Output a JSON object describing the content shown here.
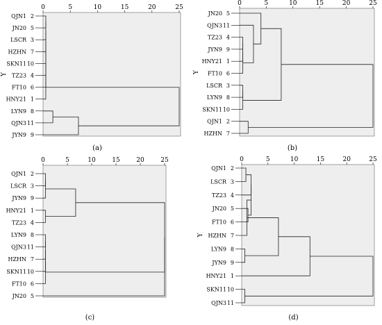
{
  "chart_data": [
    {
      "type": "dendrogram",
      "caption": "(a)",
      "ylabel": "Y",
      "xticks": [
        0,
        5,
        10,
        15,
        20,
        25
      ],
      "xlim": [
        0,
        25
      ],
      "leaves": [
        {
          "name": "QJN1",
          "id": "2"
        },
        {
          "name": "JN20",
          "id": "5"
        },
        {
          "name": "LSCR",
          "id": "3"
        },
        {
          "name": "HZHN",
          "id": "7"
        },
        {
          "name": "SKN11",
          "id": "10"
        },
        {
          "name": "TZ23",
          "id": "4"
        },
        {
          "name": "FT10",
          "id": "6"
        },
        {
          "name": "HNY21",
          "id": "1"
        },
        {
          "name": "LYN9",
          "id": "8"
        },
        {
          "name": "QJN3",
          "id": "11"
        },
        {
          "name": "JYN9",
          "id": "9"
        }
      ],
      "merges": [
        {
          "a": 0,
          "b": 1,
          "h": 0.5
        },
        {
          "a": 11,
          "b": 2,
          "h": 0.5
        },
        {
          "a": 12,
          "b": 3,
          "h": 0.5
        },
        {
          "a": 13,
          "b": 4,
          "h": 0.5
        },
        {
          "a": 14,
          "b": 5,
          "h": 0.5
        },
        {
          "a": 15,
          "b": 6,
          "h": 0.5
        },
        {
          "a": 16,
          "b": 7,
          "h": 0.5
        },
        {
          "a": 8,
          "b": 9,
          "h": 1.8
        },
        {
          "a": 18,
          "b": 10,
          "h": 6.5
        },
        {
          "a": 17,
          "b": 19,
          "h": 25
        }
      ]
    },
    {
      "type": "dendrogram",
      "caption": "(b)",
      "ylabel": "Y",
      "xticks": [
        0,
        5,
        10,
        15,
        20,
        25
      ],
      "xlim": [
        0,
        25
      ],
      "leaves": [
        {
          "name": "JN20",
          "id": "5"
        },
        {
          "name": "QJN3",
          "id": "11"
        },
        {
          "name": "TZ23",
          "id": "4"
        },
        {
          "name": "JYN9",
          "id": "9"
        },
        {
          "name": "HNY21",
          "id": "1"
        },
        {
          "name": "FT10",
          "id": "6"
        },
        {
          "name": "LSCR",
          "id": "3"
        },
        {
          "name": "LYN9",
          "id": "8"
        },
        {
          "name": "SKN11",
          "id": "10"
        },
        {
          "name": "QJN1",
          "id": "2"
        },
        {
          "name": "HZHN",
          "id": "7"
        }
      ],
      "merges": [
        {
          "a": 2,
          "b": 3,
          "h": 0.6
        },
        {
          "a": 11,
          "b": 4,
          "h": 0.6
        },
        {
          "a": 12,
          "b": 5,
          "h": 0.6
        },
        {
          "a": 1,
          "b": 13,
          "h": 2.6
        },
        {
          "a": 0,
          "b": 14,
          "h": 4
        },
        {
          "a": 6,
          "b": 7,
          "h": 0.6
        },
        {
          "a": 16,
          "b": 8,
          "h": 0.6
        },
        {
          "a": 15,
          "b": 17,
          "h": 7.8
        },
        {
          "a": 9,
          "b": 10,
          "h": 1.6
        },
        {
          "a": 18,
          "b": 19,
          "h": 25
        }
      ]
    },
    {
      "type": "dendrogram",
      "caption": "(c)",
      "ylabel": "",
      "xticks": [
        0,
        5,
        10,
        15,
        20,
        25
      ],
      "xlim": [
        0,
        25
      ],
      "leaves": [
        {
          "name": "QJN1",
          "id": "2"
        },
        {
          "name": "LSCR",
          "id": "3"
        },
        {
          "name": "JYN9",
          "id": "9"
        },
        {
          "name": "HNY21",
          "id": "1"
        },
        {
          "name": "TZ23",
          "id": "4"
        },
        {
          "name": "LYN9",
          "id": "8"
        },
        {
          "name": "QJN3",
          "id": "11"
        },
        {
          "name": "HZHN",
          "id": "7"
        },
        {
          "name": "SKN11",
          "id": "10"
        },
        {
          "name": "FT10",
          "id": "6"
        },
        {
          "name": "JN20",
          "id": "5"
        }
      ],
      "merges": [
        {
          "a": 0,
          "b": 1,
          "h": 0.5
        },
        {
          "a": 11,
          "b": 2,
          "h": 0.5
        },
        {
          "a": 3,
          "b": 4,
          "h": 0.5
        },
        {
          "a": 12,
          "b": 13,
          "h": 6.7
        },
        {
          "a": 5,
          "b": 6,
          "h": 0.5
        },
        {
          "a": 15,
          "b": 7,
          "h": 0.5
        },
        {
          "a": 16,
          "b": 8,
          "h": 0.5
        },
        {
          "a": 17,
          "b": 9,
          "h": 0.5
        },
        {
          "a": 14,
          "b": 18,
          "h": 25
        },
        {
          "a": 19,
          "b": 10,
          "h": 25
        }
      ]
    },
    {
      "type": "dendrogram",
      "caption": "(d)",
      "ylabel": "Y",
      "xticks": [
        0,
        5,
        10,
        15,
        20,
        25
      ],
      "xlim": [
        0,
        25
      ],
      "leaves": [
        {
          "name": "QJN1",
          "id": "2"
        },
        {
          "name": "LSCR",
          "id": "3"
        },
        {
          "name": "TZ23",
          "id": "4"
        },
        {
          "name": "JN20",
          "id": "5"
        },
        {
          "name": "FT10",
          "id": "6"
        },
        {
          "name": "HZHN",
          "id": "7"
        },
        {
          "name": "LYN9",
          "id": "8"
        },
        {
          "name": "JYN9",
          "id": "9"
        },
        {
          "name": "HNY21",
          "id": "1"
        },
        {
          "name": "SKN11",
          "id": "10"
        },
        {
          "name": "QJN3",
          "id": "11"
        }
      ],
      "merges": [
        {
          "a": 0,
          "b": 1,
          "h": 0.8
        },
        {
          "a": 11,
          "b": 2,
          "h": 1.8
        },
        {
          "a": 3,
          "b": 4,
          "h": 1.2
        },
        {
          "a": 12,
          "b": 13,
          "h": 1.8
        },
        {
          "a": 14,
          "b": 5,
          "h": 1.0
        },
        {
          "a": 6,
          "b": 7,
          "h": 0.6
        },
        {
          "a": 15,
          "b": 16,
          "h": 7.0
        },
        {
          "a": 17,
          "b": 8,
          "h": 13
        },
        {
          "a": 9,
          "b": 10,
          "h": 0.6
        },
        {
          "a": 18,
          "b": 19,
          "h": 25
        }
      ]
    }
  ]
}
